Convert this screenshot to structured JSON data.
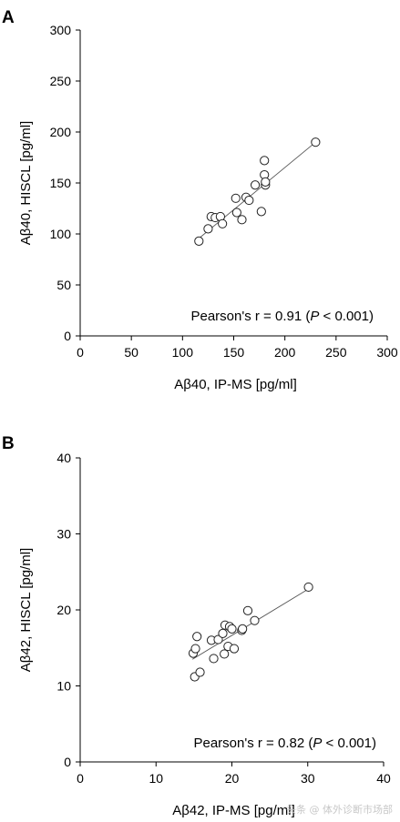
{
  "watermark": "头条 @ 体外诊断市场部",
  "chart_data": [
    {
      "type": "scatter",
      "panel_label": "A",
      "xlabel": "Aβ40, IP-MS [pg/ml]",
      "ylabel": "Aβ40, HISCL [pg/ml]",
      "xlim": [
        0,
        300
      ],
      "ylim": [
        0,
        300
      ],
      "xticks": [
        0,
        50,
        100,
        150,
        200,
        250,
        300
      ],
      "yticks": [
        0,
        50,
        100,
        150,
        200,
        250,
        300
      ],
      "grid": false,
      "annotation": {
        "prefix": "Pearson's r = 0.91 (",
        "italic": "P",
        "suffix": " < 0.001)"
      },
      "points": [
        {
          "x": 116,
          "y": 93
        },
        {
          "x": 125,
          "y": 105
        },
        {
          "x": 128,
          "y": 117
        },
        {
          "x": 132,
          "y": 116
        },
        {
          "x": 137,
          "y": 117
        },
        {
          "x": 139,
          "y": 110
        },
        {
          "x": 152,
          "y": 135
        },
        {
          "x": 153,
          "y": 121
        },
        {
          "x": 158,
          "y": 114
        },
        {
          "x": 162,
          "y": 136
        },
        {
          "x": 165,
          "y": 133
        },
        {
          "x": 171,
          "y": 148
        },
        {
          "x": 177,
          "y": 122
        },
        {
          "x": 180,
          "y": 158
        },
        {
          "x": 180,
          "y": 172
        },
        {
          "x": 181,
          "y": 148
        },
        {
          "x": 181,
          "y": 151
        },
        {
          "x": 230,
          "y": 190
        }
      ],
      "fit_line": {
        "x": [
          114,
          230
        ],
        "y": [
          94,
          190
        ]
      }
    },
    {
      "type": "scatter",
      "panel_label": "B",
      "xlabel": "Aβ42, IP-MS [pg/ml]",
      "ylabel": "Aβ42, HISCL [pg/ml]",
      "xlim": [
        0,
        40
      ],
      "ylim": [
        0,
        40
      ],
      "xticks": [
        0,
        10,
        20,
        30,
        40
      ],
      "yticks": [
        0,
        10,
        20,
        30,
        40
      ],
      "grid": false,
      "annotation": {
        "prefix": "Pearson's r = 0.82 (",
        "italic": "P",
        "suffix": " < 0.001)"
      },
      "points": [
        {
          "x": 14.9,
          "y": 14.3
        },
        {
          "x": 15.1,
          "y": 11.2
        },
        {
          "x": 15.2,
          "y": 14.9
        },
        {
          "x": 15.4,
          "y": 16.5
        },
        {
          "x": 15.8,
          "y": 11.8
        },
        {
          "x": 17.3,
          "y": 16.0
        },
        {
          "x": 17.6,
          "y": 13.6
        },
        {
          "x": 18.2,
          "y": 16.1
        },
        {
          "x": 18.8,
          "y": 16.9
        },
        {
          "x": 19.0,
          "y": 14.2
        },
        {
          "x": 19.1,
          "y": 18.0
        },
        {
          "x": 19.5,
          "y": 15.2
        },
        {
          "x": 19.7,
          "y": 17.8
        },
        {
          "x": 20.0,
          "y": 17.5
        },
        {
          "x": 20.3,
          "y": 14.9
        },
        {
          "x": 21.3,
          "y": 17.3
        },
        {
          "x": 21.4,
          "y": 17.5
        },
        {
          "x": 22.1,
          "y": 19.9
        },
        {
          "x": 23.0,
          "y": 18.6
        },
        {
          "x": 30.1,
          "y": 23.0
        }
      ],
      "fit_line": {
        "x": [
          14.8,
          30.0
        ],
        "y": [
          13.5,
          22.7
        ]
      }
    }
  ]
}
